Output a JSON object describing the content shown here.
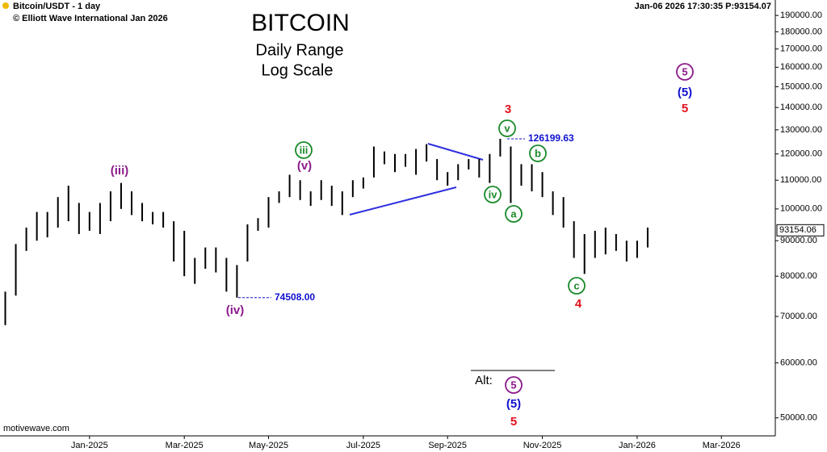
{
  "chart_data": {
    "type": "range",
    "header_left": "Bitcoin/USDT - 1 day",
    "copyright": "© Elliott Wave International Jan 2026",
    "header_right": "Jan-06 2026  17:30:35  P:93154.07",
    "watermark": "motivewave.com",
    "title": "BITCOIN",
    "subtitle": "Daily Range",
    "subtitle2": "Log Scale",
    "log_scale": true,
    "color": "#000000",
    "categories": [
      null,
      null,
      null,
      null,
      null,
      null,
      null,
      null,
      "Jan-2025",
      null,
      null,
      null,
      null,
      null,
      null,
      null,
      null,
      "Mar-2025",
      null,
      null,
      null,
      null,
      null,
      null,
      null,
      "May-2025",
      null,
      null,
      null,
      null,
      null,
      null,
      null,
      null,
      "Jul-2025",
      null,
      null,
      null,
      null,
      null,
      null,
      null,
      "Sep-2025",
      null,
      null,
      null,
      null,
      null,
      null,
      null,
      null,
      "Nov-2025",
      null,
      null,
      null,
      null,
      null,
      null,
      null,
      null,
      "Jan-2026",
      null,
      null,
      null,
      null,
      null,
      null,
      null,
      "Mar-2026",
      null,
      null,
      null,
      null
    ],
    "high": [
      76000,
      89000,
      94000,
      99000,
      99000,
      104000,
      108000,
      102000,
      99000,
      102000,
      106000,
      109000,
      106000,
      102000,
      99000,
      99000,
      96000,
      93000,
      85000,
      88000,
      88000,
      85000,
      83000,
      95000,
      97000,
      104000,
      106000,
      112000,
      110000,
      106000,
      110000,
      108000,
      106000,
      110000,
      111000,
      123000,
      121000,
      120000,
      120000,
      122000,
      124000,
      118000,
      113000,
      116000,
      118000,
      118000,
      120000,
      126199.63,
      123000,
      116000,
      116000,
      113000,
      106000,
      104000,
      96000,
      92000,
      93000,
      94000,
      92000,
      90000,
      90000,
      94000,
      null,
      null,
      null,
      null,
      null,
      null,
      null,
      null,
      null,
      null,
      null
    ],
    "low": [
      68000,
      75000,
      87000,
      90000,
      91000,
      94000,
      96000,
      92000,
      93000,
      92000,
      96000,
      100000,
      98000,
      96000,
      95000,
      94000,
      84000,
      80000,
      78000,
      82000,
      81000,
      76000,
      74508,
      84000,
      93000,
      94000,
      102000,
      104000,
      103000,
      101000,
      103000,
      101000,
      98000,
      104000,
      107000,
      111000,
      116000,
      113000,
      115000,
      112000,
      117000,
      110000,
      108000,
      110000,
      114000,
      111000,
      109000,
      119000,
      102000,
      108000,
      106000,
      104000,
      98000,
      94000,
      85000,
      80600,
      85000,
      86000,
      87000,
      84000,
      85000,
      88000,
      null,
      null,
      null,
      null,
      null,
      null,
      null,
      null,
      null,
      null,
      null
    ],
    "ylim": [
      47100,
      200000
    ],
    "yticks": [
      {
        "value": 50000,
        "label": "50000.00"
      },
      {
        "value": 60000,
        "label": "60000.00"
      },
      {
        "value": 70000,
        "label": "70000.00"
      },
      {
        "value": 80000,
        "label": "80000.00"
      },
      {
        "value": 90000,
        "label": "90000.00"
      },
      {
        "value": 100000,
        "label": "100000.00"
      },
      {
        "value": 110000,
        "label": "110000.00"
      },
      {
        "value": 120000,
        "label": "120000.00"
      },
      {
        "value": 130000,
        "label": "130000.00"
      },
      {
        "value": 140000,
        "label": "140000.00"
      },
      {
        "value": 150000,
        "label": "150000.00"
      },
      {
        "value": 160000,
        "label": "160000.00"
      },
      {
        "value": 170000,
        "label": "170000.00"
      },
      {
        "value": 180000,
        "label": "180000.00"
      },
      {
        "value": 190000,
        "label": "190000.00"
      }
    ],
    "price_labels": [
      {
        "value": 74508,
        "label": "74508.00"
      },
      {
        "value": 126199.63,
        "label": "126199.63"
      }
    ],
    "last_price": {
      "value": 93154.06,
      "label": "93154.06"
    },
    "annotations": [
      {
        "text": "(iii)",
        "color": "#8b1a8b"
      },
      {
        "text": "iii",
        "color": "#1a8a2a",
        "circled": true
      },
      {
        "text": "(v)",
        "color": "#8b1a8b"
      },
      {
        "text": "(iv)",
        "color": "#8b1a8b"
      },
      {
        "text": "3",
        "color": "#e0101a"
      },
      {
        "text": "v",
        "color": "#1a8a2a",
        "circled": true
      },
      {
        "text": "iv",
        "color": "#1a8a2a",
        "circled": true
      },
      {
        "text": "a",
        "color": "#1a8a2a",
        "circled": true
      },
      {
        "text": "b",
        "color": "#1a8a2a",
        "circled": true
      },
      {
        "text": "c",
        "color": "#1a8a2a",
        "circled": true
      },
      {
        "text": "4",
        "color": "#e0101a"
      },
      {
        "text": "5",
        "color": "#8b1a8b",
        "circled": true
      },
      {
        "text": "(5)",
        "color": "#1010d0"
      },
      {
        "text": "5",
        "color": "#e0101a"
      },
      {
        "text": "Alt:",
        "color": "#000000"
      },
      {
        "text": "5",
        "color": "#8b1a8b",
        "circled": true
      },
      {
        "text": "(5)",
        "color": "#1010d0"
      },
      {
        "text": "5",
        "color": "#e0101a"
      }
    ]
  }
}
